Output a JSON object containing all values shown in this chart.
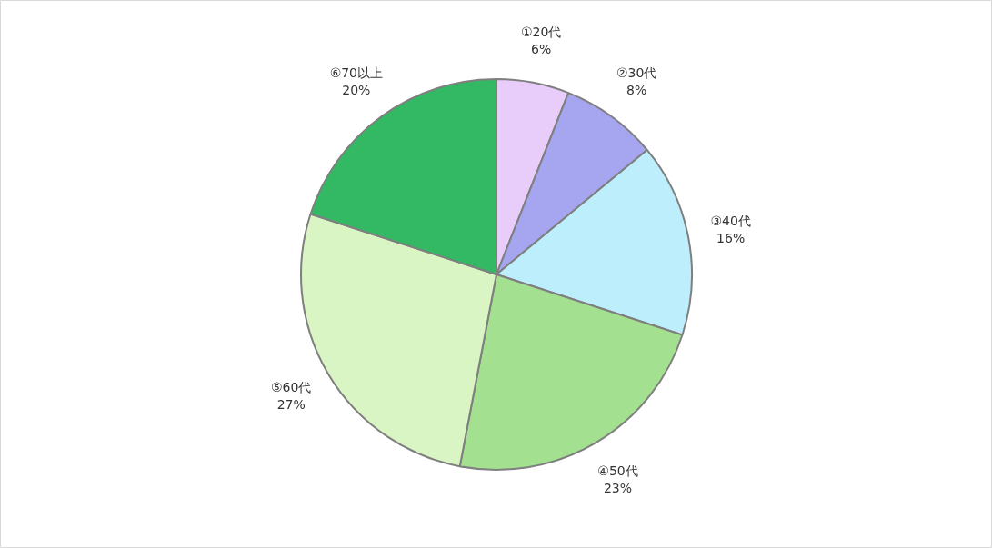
{
  "chart_data": {
    "type": "pie",
    "categories": [
      "①20代",
      "②30代",
      "③40代",
      "④50代",
      "⑤60代",
      "⑥70以上"
    ],
    "values": [
      6,
      8,
      16,
      23,
      27,
      20
    ],
    "colors": [
      "#e8cdfa",
      "#a5a5f0",
      "#bdeefc",
      "#a3e08f",
      "#d9f5c4",
      "#33b864"
    ],
    "value_labels": [
      "6%",
      "8%",
      "16%",
      "23%",
      "27%",
      "20%"
    ]
  }
}
